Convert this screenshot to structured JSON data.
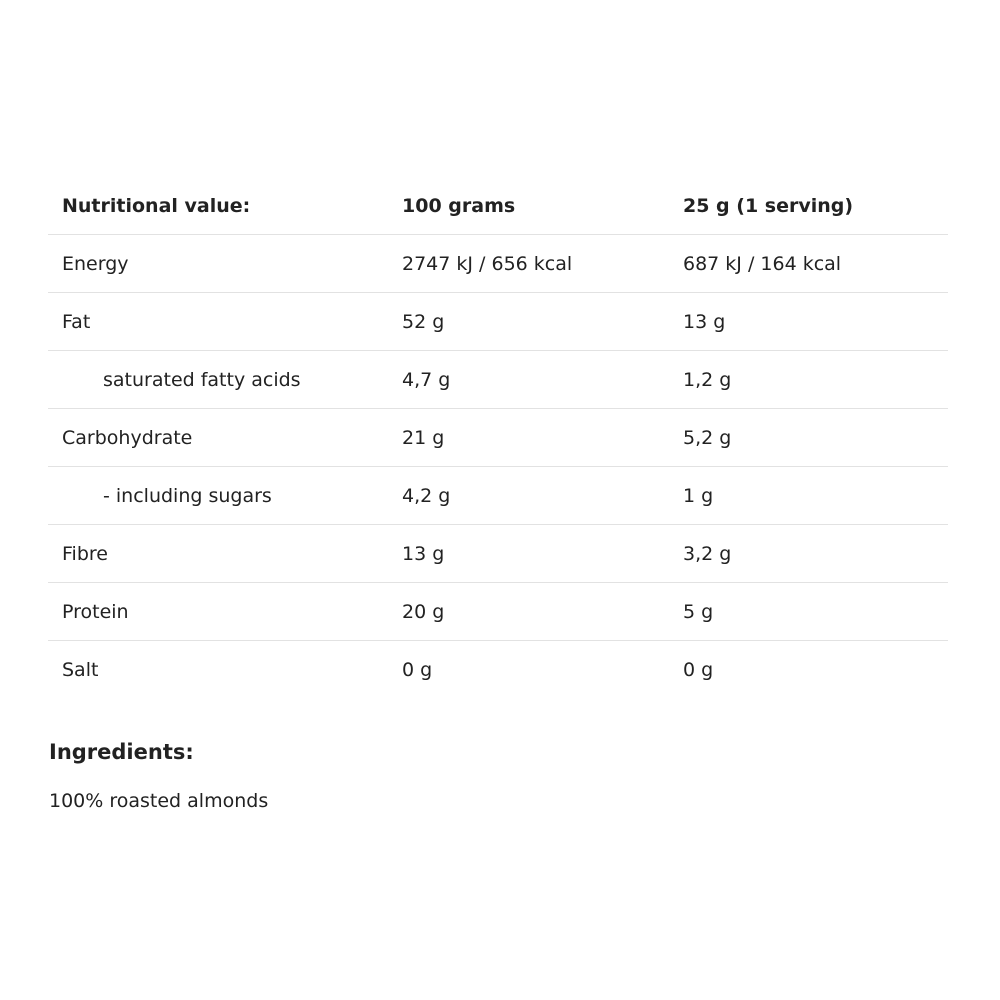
{
  "table": {
    "headers": [
      "Nutritional value:",
      "100 grams",
      "25 g (1 serving)"
    ],
    "rows": [
      {
        "name": "Energy",
        "per100": "2747 kJ / 656 kcal",
        "perServing": "687 kJ / 164 kcal",
        "indent": false
      },
      {
        "name": "Fat",
        "per100": "52 g",
        "perServing": "13 g",
        "indent": false
      },
      {
        "name": "saturated fatty acids",
        "per100": "4,7 g",
        "perServing": "1,2 g",
        "indent": true
      },
      {
        "name": "Carbohydrate",
        "per100": "21 g",
        "perServing": "5,2 g",
        "indent": false
      },
      {
        "name": "- including sugars",
        "per100": "4,2 g",
        "perServing": "1 g",
        "indent": true
      },
      {
        "name": "Fibre",
        "per100": "13 g",
        "perServing": "3,2 g",
        "indent": false
      },
      {
        "name": "Protein",
        "per100": "20 g",
        "perServing": "5 g",
        "indent": false
      },
      {
        "name": "Salt",
        "per100": "0 g",
        "perServing": "0 g",
        "indent": false
      }
    ]
  },
  "ingredients": {
    "title": "Ingredients:",
    "text": "100% roasted almonds"
  }
}
